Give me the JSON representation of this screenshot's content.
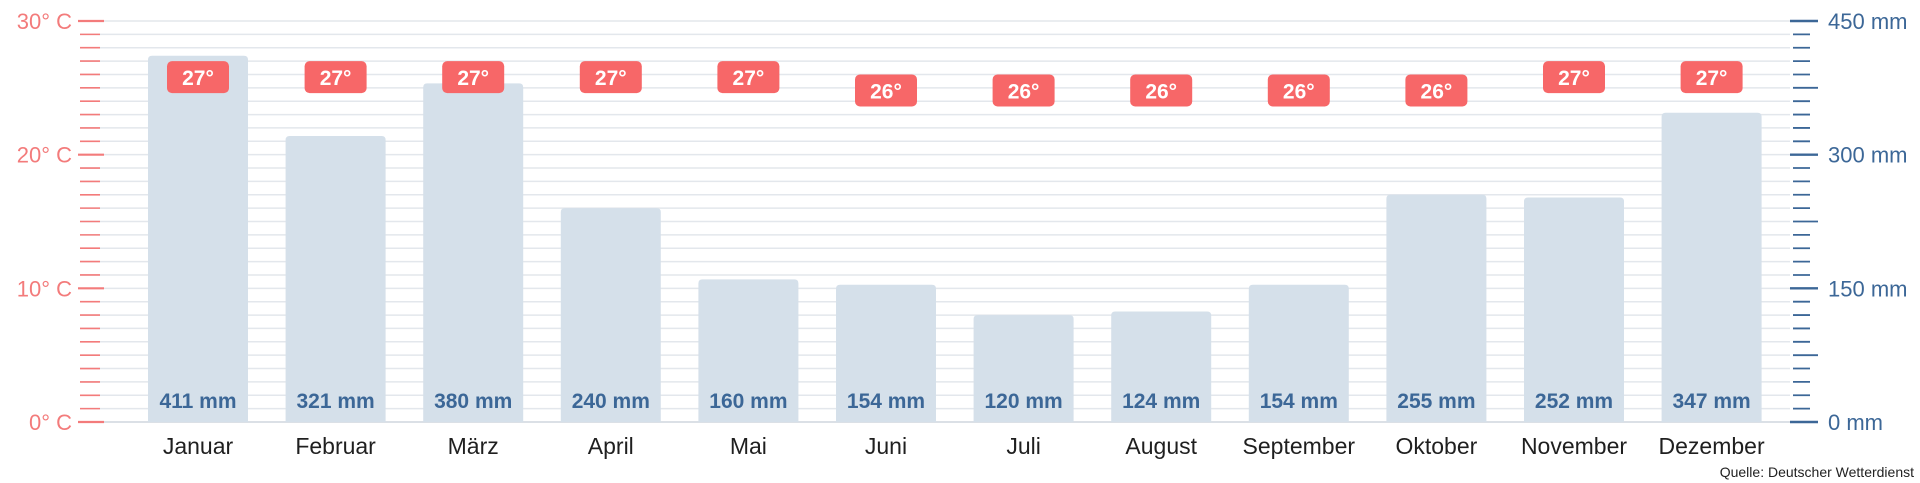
{
  "chart_data": {
    "type": "bar",
    "categories": [
      "Januar",
      "Februar",
      "März",
      "April",
      "Mai",
      "Juni",
      "Juli",
      "August",
      "September",
      "Oktober",
      "November",
      "Dezember"
    ],
    "series": [
      {
        "values": [
          411,
          321,
          380,
          240,
          160,
          154,
          120,
          124,
          154,
          255,
          252,
          347
        ],
        "labels": [
          "411 mm",
          "321 mm",
          "380 mm",
          "240 mm",
          "160 mm",
          "154 mm",
          "120 mm",
          "124 mm",
          "154 mm",
          "255 mm",
          "252 mm",
          "347 mm"
        ],
        "axis": "right",
        "color": "#d5e0ea"
      },
      {
        "values": [
          27,
          27,
          27,
          27,
          27,
          26,
          26,
          26,
          26,
          26,
          27,
          27
        ],
        "labels": [
          "27°",
          "27°",
          "27°",
          "27°",
          "27°",
          "26°",
          "26°",
          "26°",
          "26°",
          "26°",
          "27°",
          "27°"
        ],
        "axis": "left",
        "color": "#f76768"
      }
    ],
    "left_axis": {
      "ylim": [
        0,
        30
      ],
      "ticks": [
        0,
        10,
        20,
        30
      ],
      "tick_labels": [
        "0° C",
        "10° C",
        "20° C",
        "30° C"
      ],
      "color": "#f37b7b"
    },
    "right_axis": {
      "ylim": [
        0,
        450
      ],
      "ticks": [
        0,
        150,
        300,
        450
      ],
      "tick_labels": [
        "0 mm",
        "150 mm",
        "300 mm",
        "450 mm"
      ],
      "color": "#3c6797"
    },
    "grid": true,
    "source": "Quelle: Deutscher Wetterdienst"
  }
}
